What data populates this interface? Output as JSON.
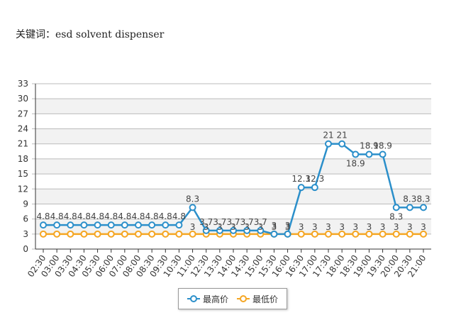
{
  "keyword": {
    "prefix": "关键词：",
    "value": "esd solvent dispenser"
  },
  "colors": {
    "high": "#2b8fca",
    "low": "#f5a623",
    "grid": "#bbbbbb",
    "band": "#f2f2f2"
  },
  "chart_data": {
    "type": "line",
    "title": "",
    "ylim": [
      0,
      33
    ],
    "yticks": [
      0,
      3,
      6,
      9,
      12,
      15,
      18,
      21,
      24,
      27,
      30,
      33
    ],
    "categories": [
      "02:30",
      "03:00",
      "03:30",
      "04:30",
      "05:30",
      "06:00",
      "07:00",
      "08:00",
      "08:30",
      "09:30",
      "10:30",
      "11:00",
      "12:30",
      "13:30",
      "14:00",
      "14:30",
      "15:00",
      "15:30",
      "16:00",
      "16:30",
      "17:00",
      "17:30",
      "18:00",
      "18:30",
      "19:00",
      "19:30",
      "20:00",
      "20:30",
      "21:00"
    ],
    "series": [
      {
        "name": "最高价",
        "values": [
          4.8,
          4.8,
          4.8,
          4.8,
          4.8,
          4.8,
          4.8,
          4.8,
          4.8,
          4.8,
          4.8,
          8.3,
          3.7,
          3.7,
          3.7,
          3.7,
          3.7,
          3,
          3,
          12.3,
          12.3,
          21,
          21,
          18.9,
          18.9,
          18.9,
          8.3,
          8.3,
          8.3
        ],
        "labels": [
          "4.8",
          "4.8",
          "4.8",
          "4.8",
          "4.8",
          "4.8",
          "4.8",
          "4.8",
          "4.8",
          "4.8",
          "4.8",
          "8.3",
          "3.7",
          "3.7",
          "3.7",
          "3.7",
          "3.7",
          "3",
          "3",
          "12.3",
          "12.3",
          "21",
          "21",
          "18.9",
          "18.9",
          "18.9",
          "8.3",
          "8.3",
          "8.3"
        ]
      },
      {
        "name": "最低价",
        "values": [
          3,
          3,
          3,
          3,
          3,
          3,
          3,
          3,
          3,
          3,
          3,
          3,
          3,
          3,
          3,
          3,
          3,
          3,
          3,
          3,
          3,
          3,
          3,
          3,
          3,
          3,
          3,
          3,
          3
        ],
        "labels": [
          "",
          "",
          "",
          "",
          "",
          "",
          "",
          "",
          "",
          "",
          "",
          "3",
          "3",
          "3",
          "3",
          "3",
          "3",
          "3",
          "3",
          "3",
          "3",
          "3",
          "3",
          "3",
          "3",
          "3",
          "3",
          "3",
          "3"
        ]
      }
    ],
    "legend": "bottom-center"
  }
}
